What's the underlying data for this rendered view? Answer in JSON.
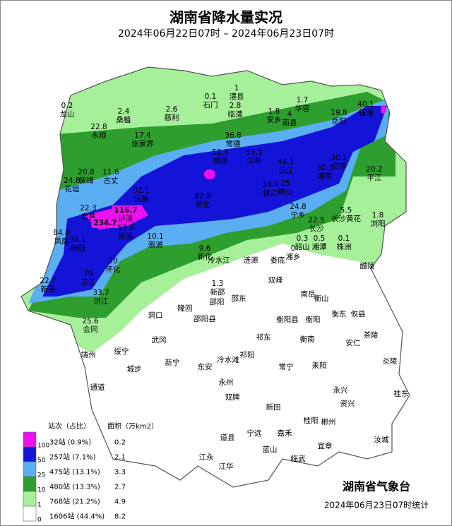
{
  "header": {
    "title": "湖南省降水量实况",
    "subtitle": "2024年06月22日07时 – 2024年06月23日07时"
  },
  "stations": [
    {
      "name": "龙山",
      "value": 0.2
    },
    {
      "name": "桑植",
      "value": 2.4
    },
    {
      "name": "慈利",
      "value": 2.6
    },
    {
      "name": "石门",
      "value": 0.1
    },
    {
      "name": "澧县",
      "value": 1
    },
    {
      "name": "临澧",
      "value": 2.8
    },
    {
      "name": "安乡",
      "value": 1.8
    },
    {
      "name": "南县",
      "value": 4
    },
    {
      "name": "华容",
      "value": 1.7
    },
    {
      "name": "岳阳",
      "value": 19.8
    },
    {
      "name": "临湘",
      "value": 40.1
    },
    {
      "name": "永顺",
      "value": 22.8
    },
    {
      "name": "张家界",
      "value": 17.4
    },
    {
      "name": "常德",
      "value": 36.8
    },
    {
      "name": "桃源",
      "value": 52.9
    },
    {
      "name": "汉寿",
      "value": 53.1
    },
    {
      "name": "沅江",
      "value": 46.1
    },
    {
      "name": "汨罗",
      "value": 30.1
    },
    {
      "name": "湘阴",
      "value": 30.3
    },
    {
      "name": "平江",
      "value": 20.2
    },
    {
      "name": "花垣",
      "value": 24.8
    },
    {
      "name": "保靖",
      "value": 20.8
    },
    {
      "name": "古丈",
      "value": 11.6
    },
    {
      "name": "沅陵",
      "value": 32.1
    },
    {
      "name": "安化",
      "value": 82.8
    },
    {
      "name": "桃江",
      "value": 34.4
    },
    {
      "name": "赫山",
      "value": 25
    },
    {
      "name": "宁乡",
      "value": 24.8
    },
    {
      "name": "长沙",
      "value": 22.5
    },
    {
      "name": "长沙黄花",
      "value": 5.5
    },
    {
      "name": "浏阳",
      "value": 1.8
    },
    {
      "name": "吉首",
      "value": 22.3
    },
    {
      "name": "泸溪",
      "value": 116.7
    },
    {
      "value": 234.7
    },
    {
      "name": "辰溪",
      "value": 53.8
    },
    {
      "name": "凤凰",
      "value": 84.8
    },
    {
      "name": "麻阳",
      "value": 36.1
    },
    {
      "name": "溆浦",
      "value": 10.1
    },
    {
      "name": "新化",
      "value": 9.6
    },
    {
      "name": "韶山",
      "value": 0.3
    },
    {
      "name": "湘潭",
      "value": 0.5
    },
    {
      "name": "株洲",
      "value": 0.1
    },
    {
      "name": "湘乡",
      "value": 0
    },
    {
      "name": "怀化",
      "value": 20
    },
    {
      "name": "芷江",
      "value": 79
    },
    {
      "name": "新晃",
      "value": 22.7
    },
    {
      "name": "洪江",
      "value": 33.7
    },
    {
      "name": "会同",
      "value": 25.6
    },
    {
      "name": "新邵",
      "value": 1.3
    }
  ],
  "places": [
    "冷水江",
    "涟源",
    "娄底",
    "醴陵",
    "双峰",
    "南岳",
    "衡山",
    "邵阳",
    "邵东",
    "隆回",
    "洞口",
    "邵阳县",
    "衡阳县",
    "衡阳",
    "衡东",
    "攸县",
    "衡南",
    "安仁",
    "茶陵",
    "祁东",
    "武冈",
    "绥宁",
    "新宁",
    "冷水滩",
    "祁阳",
    "常宁",
    "耒阳",
    "炎陵",
    "靖州",
    "城步",
    "东安",
    "永州",
    "通道",
    "双牌",
    "永兴",
    "资兴",
    "桂东",
    "新田",
    "桂阳",
    "郴州",
    "道县",
    "宁远",
    "嘉禾",
    "汝城",
    "宜章",
    "蓝山",
    "临武",
    "江永",
    "江华"
  ],
  "legend": {
    "count_header": "站次（占比）",
    "area_header": "面积（万km2）",
    "thresholds": [
      100,
      50,
      25,
      10,
      1,
      0
    ],
    "rows": [
      {
        "color": "#ee10ee",
        "count": "32站 (0.9%)",
        "area": 0.2
      },
      {
        "color": "#1414d8",
        "count": "257站 (7.1%)",
        "area": 2.1
      },
      {
        "color": "#5aaef2",
        "count": "475站 (13.1%)",
        "area": 3.3
      },
      {
        "color": "#2e9e2e",
        "count": "480站 (13.3%)",
        "area": 2.7
      },
      {
        "color": "#a6f09a",
        "count": "768站 (21.2%)",
        "area": 4.9
      },
      {
        "color": "#ffffff",
        "count": "1606站 (44.4%)",
        "area": 8.2
      }
    ]
  },
  "footer": {
    "agency": "湖南省气象台",
    "stat_time": "2024年06月23日07时统计"
  }
}
